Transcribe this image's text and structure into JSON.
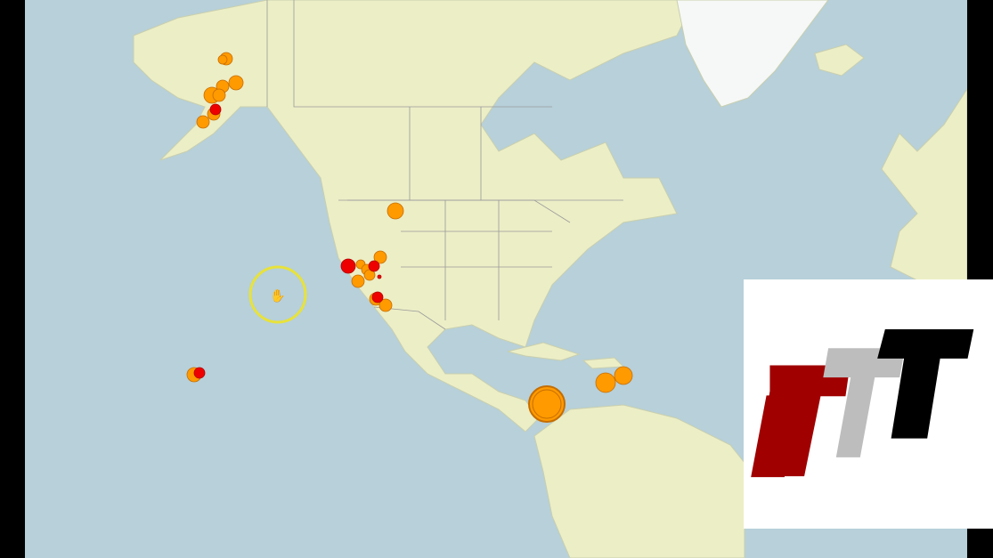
{
  "map": {
    "ocean_color": "#b7d0d9",
    "land_color": "#eceec6",
    "ice_color": "#f6f8f7",
    "border_color": "#9a9a9a"
  },
  "markers": {
    "colors": {
      "orange": "#ff9a00",
      "red": "#ee0000",
      "outline": "#c56d00"
    }
  },
  "cursor": {
    "icon": "hand-pointer-icon",
    "ring_color": "#e8e23a"
  },
  "logo": {
    "text": "TTT",
    "colors": [
      "#a00000",
      "#bdbdbd",
      "#000000"
    ]
  }
}
